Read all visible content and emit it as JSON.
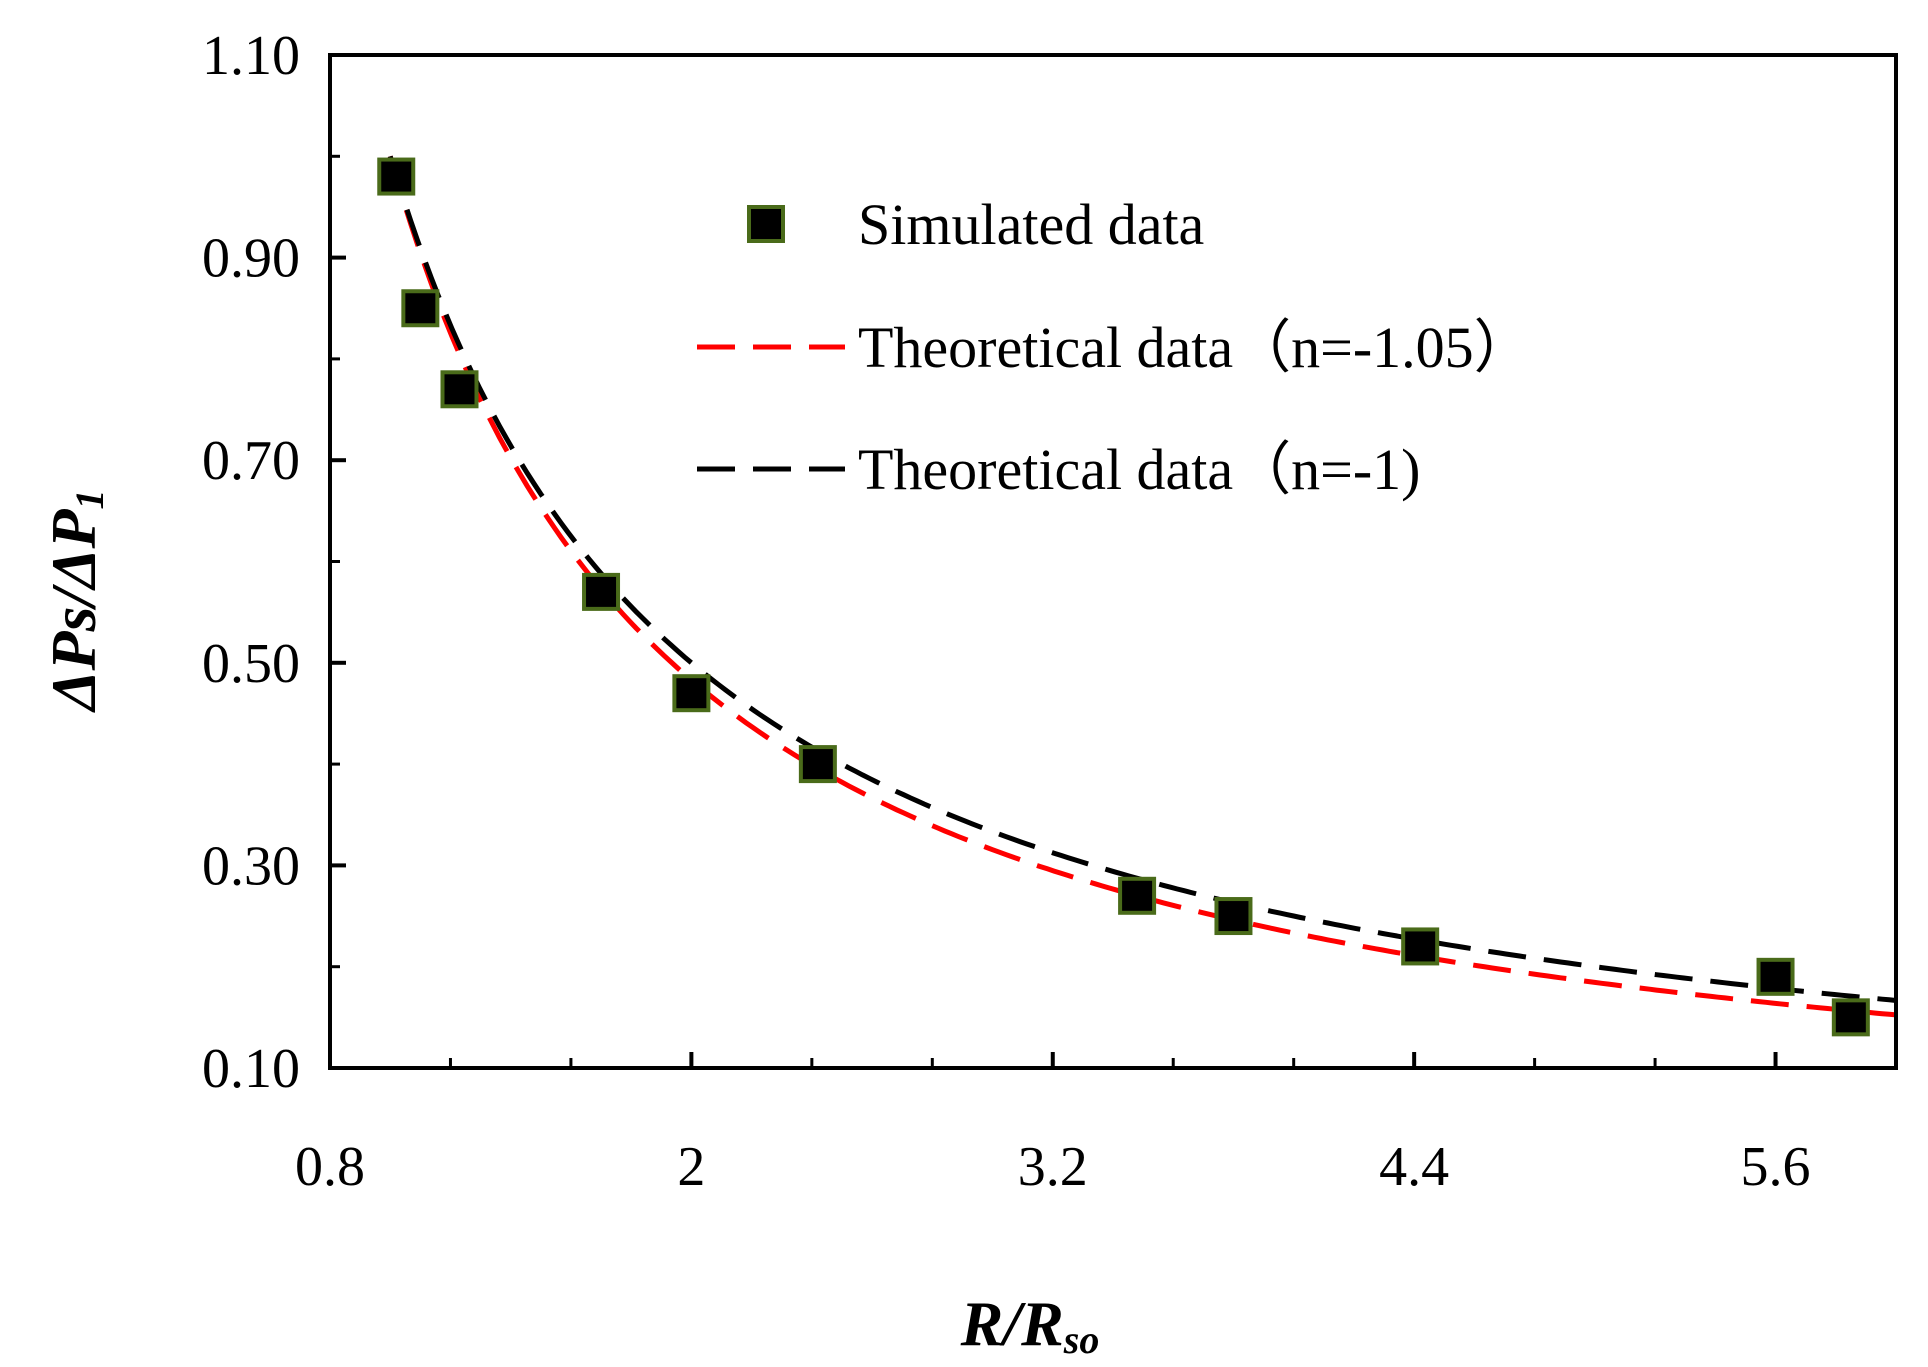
{
  "chart_data": {
    "type": "scatter",
    "title": "",
    "xlabel": {
      "main": "R/R",
      "sub": "so"
    },
    "ylabel": {
      "main": "ΔP",
      "mid": "s",
      "sep": "/ΔP",
      "sub": "1"
    },
    "xlim": [
      0.8,
      6.0
    ],
    "ylim": [
      0.1,
      1.1
    ],
    "x_ticks": [
      0.8,
      2.0,
      3.2,
      4.4,
      5.6
    ],
    "x_tick_labels": [
      "0.8",
      "2",
      "3.2",
      "4.4",
      "5.6"
    ],
    "x_minor_step": 0.4,
    "y_ticks": [
      0.1,
      0.3,
      0.5,
      0.7,
      0.9,
      1.1
    ],
    "y_tick_labels": [
      "0.10",
      "0.30",
      "0.50",
      "0.70",
      "0.90",
      "1.10"
    ],
    "y_minor_step": 0.1,
    "legend_position": "top-right",
    "series": [
      {
        "name": "Simulated data",
        "kind": "markers",
        "marker": "square",
        "color": "#000000",
        "edge_color": "#4a6b1a",
        "x": [
          1.02,
          1.1,
          1.23,
          1.7,
          2.0,
          2.42,
          3.48,
          3.8,
          4.42,
          5.6,
          5.85
        ],
        "y": [
          0.98,
          0.85,
          0.77,
          0.57,
          0.47,
          0.4,
          0.27,
          0.25,
          0.22,
          0.19,
          0.15
        ]
      },
      {
        "name": "Theoretical data（n=-1.05）",
        "kind": "dashed-line",
        "color": "#ff0000",
        "coef": 1.0,
        "exponent": -1.05,
        "x_range": [
          1.0,
          6.0
        ]
      },
      {
        "name": "Theoretical data（n=-1)",
        "kind": "dashed-line",
        "color": "#000000",
        "coef": 1.0,
        "exponent": -1.0,
        "x_range": [
          1.0,
          6.0
        ]
      }
    ]
  }
}
